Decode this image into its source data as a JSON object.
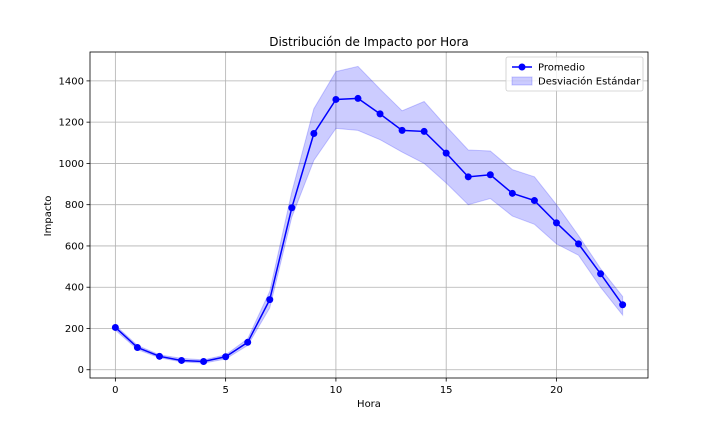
{
  "chart_data": {
    "type": "line",
    "title": "Distribución de Impacto por Hora",
    "xlabel": "Hora",
    "ylabel": "Impacto",
    "xlim": [
      -1.15,
      24.15
    ],
    "ylim": [
      -40,
      1540
    ],
    "xticks": [
      0,
      5,
      10,
      15,
      20
    ],
    "yticks": [
      0,
      200,
      400,
      600,
      800,
      1000,
      1200,
      1400
    ],
    "grid": true,
    "legend_position": "top-right",
    "x": [
      0,
      1,
      2,
      3,
      4,
      5,
      6,
      7,
      8,
      9,
      10,
      11,
      12,
      13,
      14,
      15,
      16,
      17,
      18,
      19,
      20,
      21,
      22,
      23
    ],
    "series": [
      {
        "name": "Promedio",
        "kind": "line-marker",
        "color": "#0000ff",
        "values": [
          205,
          108,
          65,
          45,
          40,
          63,
          133,
          340,
          785,
          1145,
          1310,
          1315,
          1240,
          1160,
          1155,
          1050,
          935,
          945,
          855,
          820,
          712,
          610,
          465,
          315
        ]
      },
      {
        "name": "Desviación Estándar",
        "kind": "band",
        "color": "#0000ff",
        "upper": [
          215,
          118,
          72,
          55,
          48,
          72,
          150,
          380,
          860,
          1265,
          1445,
          1470,
          1360,
          1255,
          1300,
          1180,
          1065,
          1060,
          970,
          935,
          800,
          650,
          490,
          355
        ],
        "lower": [
          192,
          98,
          58,
          38,
          32,
          52,
          118,
          300,
          740,
          1015,
          1170,
          1160,
          1115,
          1055,
          1000,
          905,
          800,
          830,
          745,
          705,
          610,
          555,
          400,
          265
        ]
      }
    ]
  }
}
